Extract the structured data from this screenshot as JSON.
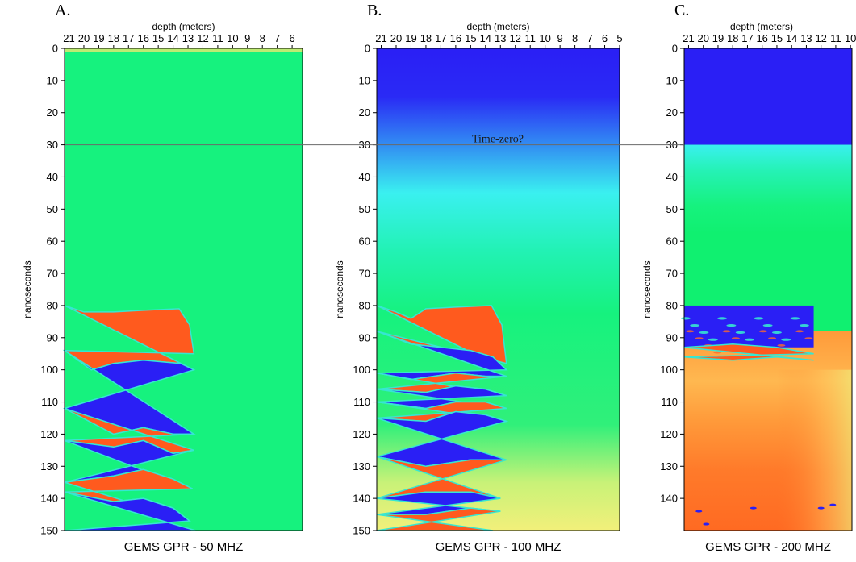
{
  "annotation": "Time-zero?",
  "time_zero_ns": 30,
  "chart_data": [
    {
      "type": "heatmap",
      "panel_label": "A.",
      "title": "GEMS GPR - 50 MHZ",
      "xlabel": "depth (meters)",
      "ylabel": "nanoseconds",
      "x_ticks": [
        "21",
        "20",
        "19",
        "18",
        "17",
        "16",
        "15",
        "14",
        "13",
        "12",
        "11",
        "10",
        "9",
        "8",
        "7",
        "6"
      ],
      "y_ticks": [
        "0",
        "10",
        "20",
        "30",
        "40",
        "50",
        "60",
        "70",
        "80",
        "90",
        "100",
        "110",
        "120",
        "130",
        "140",
        "150"
      ],
      "ylim": [
        0,
        150
      ],
      "colors": {
        "background": "#16f27e",
        "positive": "#ff5a1e",
        "negative": "#2a1ff5",
        "edge": "#36e6d2"
      },
      "reflector_top_ns": 80,
      "reflector_end_depth_m": 12.5
    },
    {
      "type": "heatmap",
      "panel_label": "B.",
      "title": "GEMS GPR - 100 MHZ",
      "xlabel": "depth (meters)",
      "ylabel": "nanoseconds",
      "x_ticks": [
        "21",
        "20",
        "19",
        "18",
        "17",
        "16",
        "15",
        "14",
        "13",
        "12",
        "11",
        "10",
        "9",
        "8",
        "7",
        "6",
        "5"
      ],
      "y_ticks": [
        "0",
        "10",
        "20",
        "30",
        "40",
        "50",
        "60",
        "70",
        "80",
        "90",
        "100",
        "110",
        "120",
        "130",
        "140",
        "150"
      ],
      "ylim": [
        0,
        150
      ],
      "colors": {
        "top": "#2a1ff5",
        "mid": "#3af0f0",
        "background": "#16f27e",
        "bottom": "#f0f07a",
        "positive": "#ff5a1e",
        "negative": "#2a1ff5"
      },
      "reflector_top_ns": 80,
      "reflector_end_depth_m": 12.5
    },
    {
      "type": "heatmap",
      "panel_label": "C.",
      "title": "GEMS GPR - 200 MHZ",
      "xlabel": "depth (meters)",
      "ylabel": "nanoseconds",
      "x_ticks": [
        "21",
        "20",
        "19",
        "18",
        "17",
        "16",
        "15",
        "14",
        "13",
        "12",
        "11",
        "10"
      ],
      "y_ticks": [
        "0",
        "10",
        "20",
        "30",
        "40",
        "50",
        "60",
        "70",
        "80",
        "90",
        "100",
        "110",
        "120",
        "130",
        "140"
      ],
      "ylim": [
        0,
        150
      ],
      "colors": {
        "top": "#2a1ff5",
        "mid": "#3af0f0",
        "background": "#16f27e",
        "lower": "#ff7a2a",
        "positive": "#ff5a1e",
        "negative": "#2a1ff5"
      },
      "reflector_top_ns": 80,
      "reflector_end_depth_m": 12.5
    }
  ]
}
